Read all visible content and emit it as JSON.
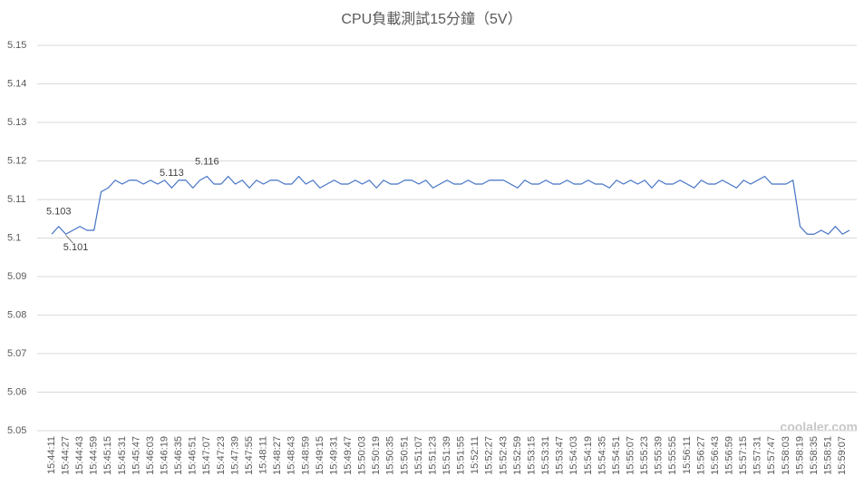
{
  "chart_data": {
    "type": "line",
    "title": "CPU負載測試15分鐘（5V）",
    "watermark": "coolaler.com",
    "ylim": [
      5.05,
      5.15
    ],
    "yticks": [
      5.05,
      5.06,
      5.07,
      5.08,
      5.09,
      5.1,
      5.11,
      5.12,
      5.13,
      5.14,
      5.15
    ],
    "grid": true,
    "categories": [
      "15:44:11",
      null,
      "15:44:27",
      null,
      "15:44:43",
      null,
      "15:44:59",
      null,
      "15:45:15",
      null,
      "15:45:31",
      null,
      "15:45:47",
      null,
      "15:46:03",
      null,
      "15:46:19",
      null,
      "15:46:35",
      null,
      "15:46:51",
      null,
      "15:47:07",
      null,
      "15:47:23",
      null,
      "15:47:39",
      null,
      "15:47:55",
      null,
      "15:48:11",
      null,
      "15:48:27",
      null,
      "15:48:43",
      null,
      "15:48:59",
      null,
      "15:49:15",
      null,
      "15:49:31",
      null,
      "15:49:47",
      null,
      "15:50:03",
      null,
      "15:50:19",
      null,
      "15:50:35",
      null,
      "15:50:51",
      null,
      "15:51:07",
      null,
      "15:51:23",
      null,
      "15:51:39",
      null,
      "15:51:55",
      null,
      "15:52:11",
      null,
      "15:52:27",
      null,
      "15:52:43",
      null,
      "15:52:59",
      null,
      "15:53:15",
      null,
      "15:53:31",
      null,
      "15:53:47",
      null,
      "15:54:03",
      null,
      "15:54:19",
      null,
      "15:54:35",
      null,
      "15:54:51",
      null,
      "15:55:07",
      null,
      "15:55:23",
      null,
      "15:55:39",
      null,
      "15:55:55",
      null,
      "15:56:11",
      null,
      "15:56:27",
      null,
      "15:56:43",
      null,
      "15:56:59",
      null,
      "15:57:15",
      null,
      "15:57:31",
      null,
      "15:57:47",
      null,
      "15:58:03",
      null,
      "15:58:19",
      null,
      "15:58:35",
      null,
      "15:58:51",
      null,
      "15:59:07",
      null
    ],
    "series": [
      {
        "color": "#4472c4",
        "values": [
          5.101,
          5.103,
          5.101,
          5.102,
          5.103,
          5.102,
          5.102,
          5.112,
          5.113,
          5.115,
          5.114,
          5.115,
          5.115,
          5.114,
          5.115,
          5.114,
          5.115,
          5.113,
          5.115,
          5.115,
          5.113,
          5.115,
          5.116,
          5.114,
          5.114,
          5.116,
          5.114,
          5.115,
          5.113,
          5.115,
          5.114,
          5.115,
          5.115,
          5.114,
          5.114,
          5.116,
          5.114,
          5.115,
          5.113,
          5.114,
          5.115,
          5.114,
          5.114,
          5.115,
          5.114,
          5.115,
          5.113,
          5.115,
          5.114,
          5.114,
          5.115,
          5.115,
          5.114,
          5.115,
          5.113,
          5.114,
          5.115,
          5.114,
          5.114,
          5.115,
          5.114,
          5.114,
          5.115,
          5.115,
          5.115,
          5.114,
          5.113,
          5.115,
          5.114,
          5.114,
          5.115,
          5.114,
          5.114,
          5.115,
          5.114,
          5.114,
          5.115,
          5.114,
          5.114,
          5.113,
          5.115,
          5.114,
          5.115,
          5.114,
          5.115,
          5.113,
          5.115,
          5.114,
          5.114,
          5.115,
          5.114,
          5.113,
          5.115,
          5.114,
          5.114,
          5.115,
          5.114,
          5.113,
          5.115,
          5.114,
          5.115,
          5.116,
          5.114,
          5.114,
          5.114,
          5.115,
          5.103,
          5.101,
          5.101,
          5.102,
          5.101,
          5.103,
          5.101,
          5.102
        ],
        "value_labels": [
          null,
          "5.103",
          "5.101",
          null,
          null,
          null,
          null,
          null,
          null,
          null,
          null,
          null,
          null,
          null,
          null,
          null,
          null,
          "5.113",
          null,
          null,
          null,
          null,
          "5.116",
          null,
          null,
          null,
          null,
          null,
          null,
          null,
          null,
          null,
          null,
          null,
          null,
          null,
          null,
          null,
          null,
          null,
          null,
          null,
          null,
          null,
          null,
          null,
          null,
          null,
          null,
          null,
          null,
          null,
          null,
          null,
          null,
          null,
          null,
          null,
          null,
          null,
          null,
          null,
          null,
          null,
          null,
          null,
          null,
          null,
          null,
          null,
          null,
          null,
          null,
          null,
          null,
          null,
          null,
          null,
          null,
          null,
          null,
          null,
          null,
          null,
          null,
          null,
          null,
          null,
          null,
          null,
          null,
          null,
          null,
          null,
          null,
          null,
          null,
          null,
          null,
          null,
          null,
          null,
          null,
          null,
          null,
          null,
          null,
          null,
          null,
          null,
          null,
          null,
          null,
          null
        ]
      }
    ]
  }
}
